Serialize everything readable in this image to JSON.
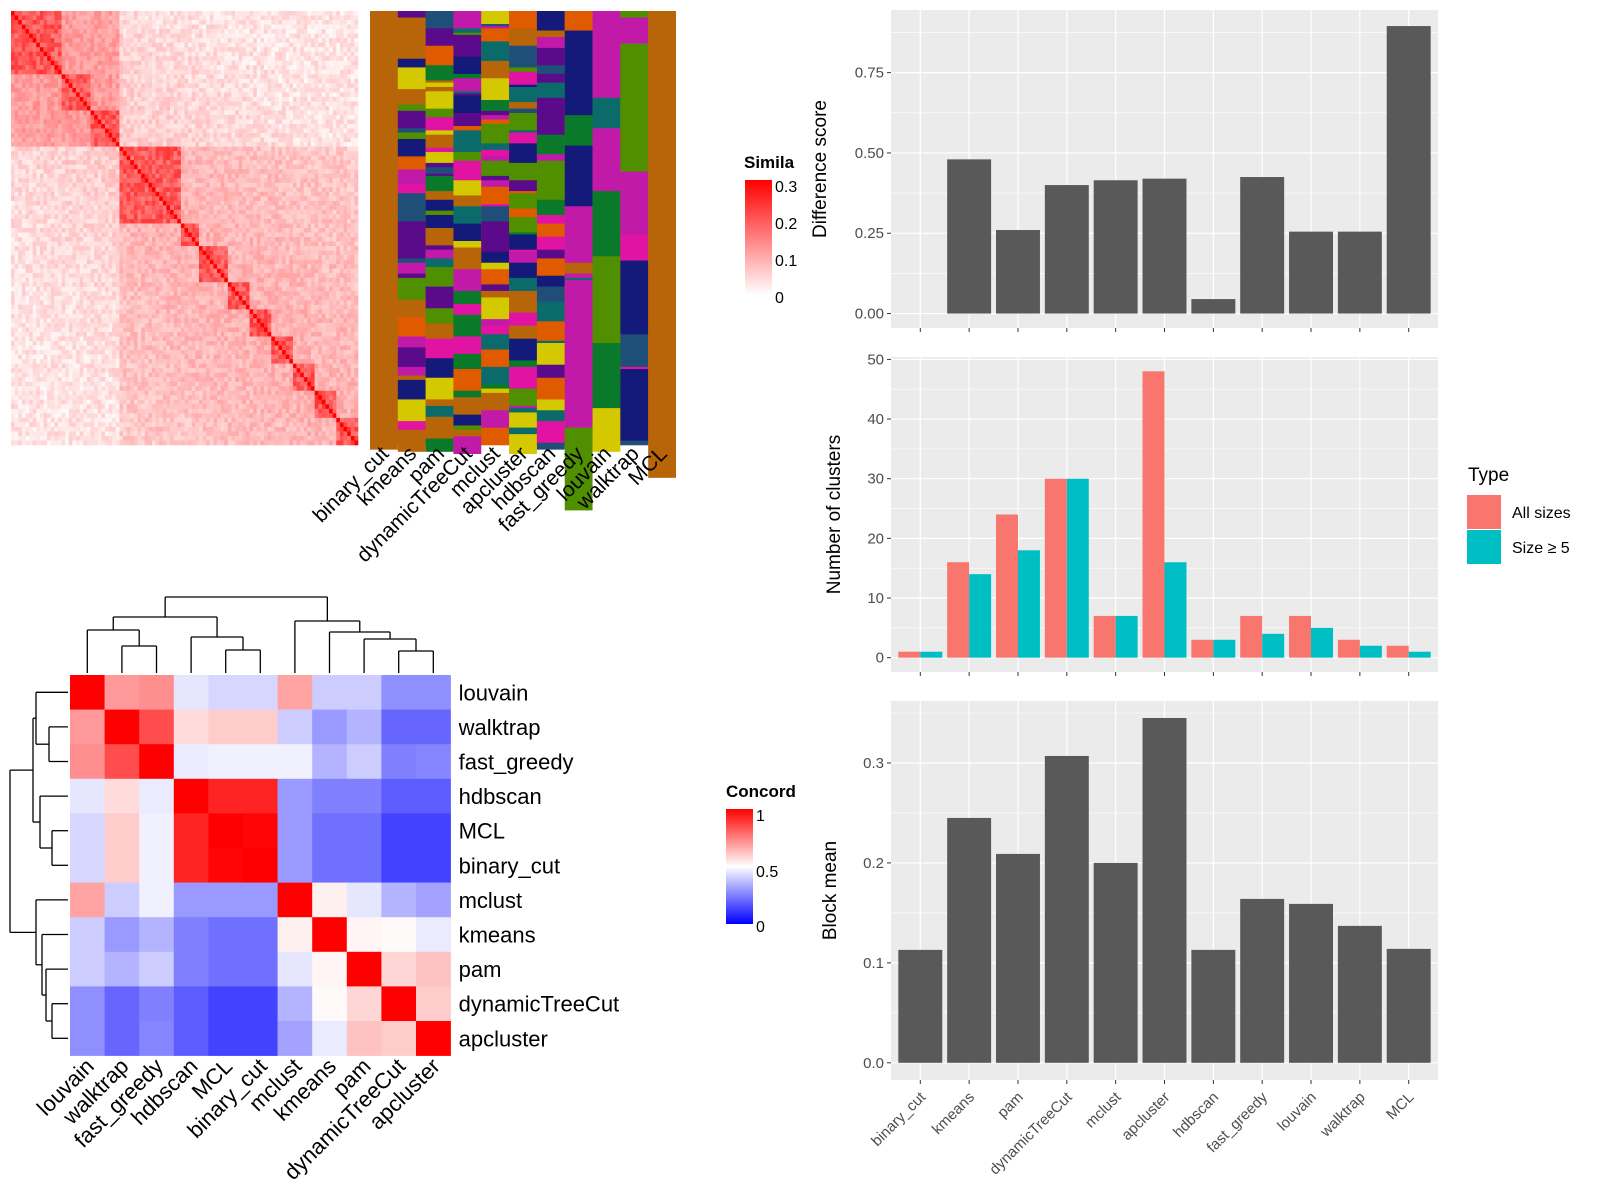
{
  "colors": {
    "bar": "#595959",
    "all_sizes": "#F8766D",
    "size_ge_5": "#00BFC4",
    "panel_bg": "#EBEBEB",
    "grid": "#FFFFFF"
  },
  "similarity_legend": {
    "title": "Simila",
    "ticks": [
      "0.3",
      "0.2",
      "0.1",
      "0"
    ]
  },
  "concordance_legend": {
    "title": "Concord",
    "ticks": [
      "1",
      "0.5",
      "0"
    ]
  },
  "membership_columns": [
    "binary_cut",
    "kmeans",
    "pam",
    "dynamicTreeCut",
    "mclust",
    "apcluster",
    "hdbscan",
    "fast_greedy",
    "louvain",
    "walktrap",
    "MCL"
  ],
  "chart_data": [
    {
      "type": "heatmap",
      "name": "concordance",
      "rows": [
        "louvain",
        "walktrap",
        "fast_greedy",
        "hdbscan",
        "MCL",
        "binary_cut",
        "mclust",
        "kmeans",
        "pam",
        "dynamicTreeCut",
        "apcluster"
      ],
      "columns": [
        "louvain",
        "walktrap",
        "fast_greedy",
        "hdbscan",
        "MCL",
        "binary_cut",
        "mclust",
        "kmeans",
        "pam",
        "dynamicTreeCut",
        "apcluster"
      ],
      "values": [
        [
          1.0,
          0.7,
          0.72,
          0.45,
          0.42,
          0.42,
          0.68,
          0.4,
          0.4,
          0.28,
          0.28
        ],
        [
          0.7,
          1.0,
          0.85,
          0.57,
          0.6,
          0.6,
          0.4,
          0.3,
          0.35,
          0.2,
          0.2
        ],
        [
          0.72,
          0.85,
          1.0,
          0.46,
          0.47,
          0.47,
          0.47,
          0.35,
          0.4,
          0.25,
          0.26
        ],
        [
          0.45,
          0.57,
          0.46,
          1.0,
          0.93,
          0.93,
          0.3,
          0.25,
          0.25,
          0.18,
          0.18
        ],
        [
          0.42,
          0.6,
          0.47,
          0.93,
          1.0,
          0.99,
          0.3,
          0.22,
          0.22,
          0.13,
          0.13
        ],
        [
          0.42,
          0.6,
          0.47,
          0.93,
          0.99,
          1.0,
          0.3,
          0.22,
          0.22,
          0.13,
          0.13
        ],
        [
          0.68,
          0.4,
          0.47,
          0.3,
          0.3,
          0.3,
          1.0,
          0.53,
          0.45,
          0.35,
          0.32
        ],
        [
          0.4,
          0.3,
          0.35,
          0.25,
          0.22,
          0.22,
          0.53,
          1.0,
          0.52,
          0.51,
          0.46
        ],
        [
          0.4,
          0.35,
          0.4,
          0.25,
          0.22,
          0.22,
          0.45,
          0.52,
          1.0,
          0.58,
          0.62
        ],
        [
          0.28,
          0.2,
          0.25,
          0.18,
          0.13,
          0.13,
          0.35,
          0.51,
          0.58,
          1.0,
          0.6
        ],
        [
          0.28,
          0.2,
          0.26,
          0.18,
          0.13,
          0.13,
          0.32,
          0.46,
          0.62,
          0.6,
          1.0
        ]
      ],
      "range": [
        0,
        1
      ]
    },
    {
      "type": "bar",
      "name": "difference_score",
      "ylabel": "Difference score",
      "categories": [
        "binary_cut",
        "kmeans",
        "pam",
        "dynamicTreeCut",
        "mclust",
        "apcluster",
        "hdbscan",
        "fast_greedy",
        "louvain",
        "walktrap",
        "MCL"
      ],
      "values": [
        0,
        0.48,
        0.26,
        0.4,
        0.415,
        0.42,
        0.045,
        0.425,
        0.255,
        0.255,
        0.895
      ],
      "ylim": [
        -0.045,
        0.945
      ],
      "yticks": [
        0,
        0.25,
        0.5,
        0.75
      ],
      "ytick_labels": [
        "0.00",
        "0.25",
        "0.50",
        "0.75"
      ],
      "grid": true
    },
    {
      "type": "bar",
      "name": "number_of_clusters",
      "ylabel": "Number of clusters",
      "categories": [
        "binary_cut",
        "kmeans",
        "pam",
        "dynamicTreeCut",
        "mclust",
        "apcluster",
        "hdbscan",
        "fast_greedy",
        "louvain",
        "walktrap",
        "MCL"
      ],
      "series": [
        {
          "name": "All sizes",
          "values": [
            1,
            16,
            24,
            30,
            7,
            48,
            3,
            7,
            7,
            3,
            2
          ]
        },
        {
          "name": "Size ≥ 5",
          "values": [
            1,
            14,
            18,
            30,
            7,
            16,
            3,
            4,
            5,
            2,
            1
          ]
        }
      ],
      "legend_title": "Type",
      "ylim": [
        -2.4,
        50.4
      ],
      "yticks": [
        0,
        10,
        20,
        30,
        40,
        50
      ],
      "ytick_labels": [
        "0",
        "10",
        "20",
        "30",
        "40",
        "50"
      ],
      "grid": true
    },
    {
      "type": "bar",
      "name": "block_mean",
      "ylabel": "Block mean",
      "categories": [
        "binary_cut",
        "kmeans",
        "pam",
        "dynamicTreeCut",
        "mclust",
        "apcluster",
        "hdbscan",
        "fast_greedy",
        "louvain",
        "walktrap",
        "MCL"
      ],
      "values": [
        0.113,
        0.245,
        0.209,
        0.307,
        0.2,
        0.345,
        0.113,
        0.164,
        0.159,
        0.137,
        0.114
      ],
      "ylim": [
        -0.0172,
        0.362
      ],
      "yticks": [
        0,
        0.1,
        0.2,
        0.3
      ],
      "ytick_labels": [
        "0.0",
        "0.1",
        "0.2",
        "0.3"
      ],
      "grid": true
    }
  ]
}
